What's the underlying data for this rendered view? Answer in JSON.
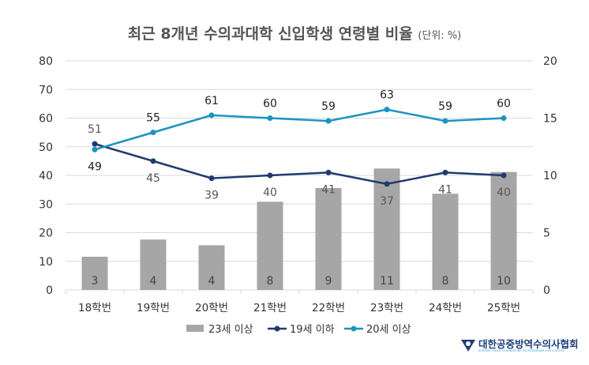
{
  "title": {
    "main": "최근 8개년 수의과대학 신입학생 연령별 비율",
    "unit": "(단위: %)"
  },
  "chart_data": {
    "type": "bar+line",
    "categories": [
      "18학번",
      "19학번",
      "20학번",
      "21학번",
      "22학번",
      "23학번",
      "24학번",
      "25학번"
    ],
    "left_axis": {
      "range": [
        0,
        80
      ],
      "ticks": [
        0,
        10,
        20,
        30,
        40,
        50,
        60,
        70,
        80
      ]
    },
    "right_axis": {
      "range": [
        0,
        20
      ],
      "ticks": [
        0,
        5,
        10,
        15,
        20
      ]
    },
    "grid": true,
    "legend_placement": "bottom",
    "series": [
      {
        "name": "23세 이상",
        "type": "bar",
        "axis": "right",
        "color": "#a6a6a6",
        "values": [
          2.9,
          4.4,
          3.9,
          7.7,
          8.9,
          10.6,
          8.4,
          10.3
        ],
        "labels": [
          "3",
          "4",
          "4",
          "8",
          "9",
          "11",
          "8",
          "10"
        ]
      },
      {
        "name": "19세 이하",
        "type": "line",
        "axis": "left",
        "color": "#1f3b6e",
        "values": [
          51,
          45,
          39,
          40,
          41,
          37,
          41,
          40
        ],
        "labels": [
          "51",
          "45",
          "39",
          "40",
          "41",
          "37",
          "41",
          "40"
        ]
      },
      {
        "name": "20세 이상",
        "type": "line",
        "axis": "left",
        "color": "#1a94c4",
        "values": [
          49,
          55,
          61,
          60,
          59,
          63,
          59,
          60
        ],
        "labels": [
          "49",
          "55",
          "61",
          "60",
          "59",
          "63",
          "59",
          "60"
        ]
      }
    ]
  },
  "logo": {
    "name": "대한공중방역수의사협회",
    "sub": "KOREAN PUBLIC QUARANTINE VETERINARIAN ASSOCIATION"
  }
}
